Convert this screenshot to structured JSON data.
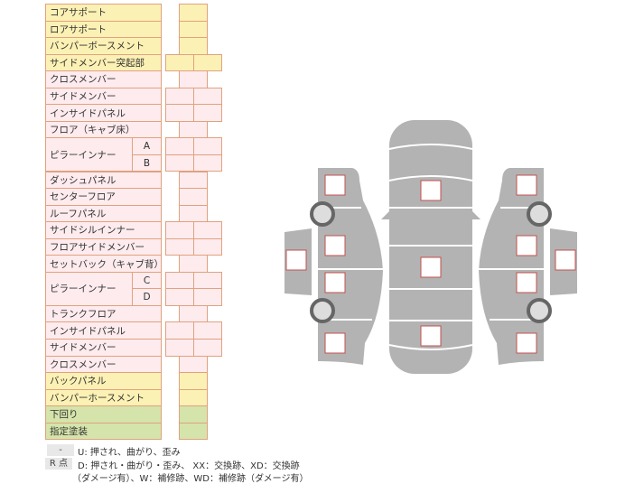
{
  "rows": [
    {
      "label": "コアサポート",
      "color": "yellow",
      "cols": 1
    },
    {
      "label": "ロアサポート",
      "color": "yellow",
      "cols": 1
    },
    {
      "label": "バンパーボースメント",
      "color": "yellow",
      "cols": 1
    },
    {
      "label": "サイドメンバー突起部",
      "color": "yellow",
      "cols": 2
    },
    {
      "label": "クロスメンバー",
      "color": "pink",
      "cols": 1
    },
    {
      "label": "サイドメンバー",
      "color": "pink",
      "cols": 2
    },
    {
      "label": "インサイドパネル",
      "color": "pink",
      "cols": 2
    },
    {
      "label": "フロア（キャブ床）",
      "color": "pink",
      "cols": 1
    },
    {
      "label": "ピラーインナー",
      "color": "pink",
      "cols": 2,
      "sub": "A",
      "span": 2
    },
    {
      "label": "",
      "color": "pink",
      "cols": 2,
      "sub": "B",
      "cont": true
    },
    {
      "label": "ダッシュパネル",
      "color": "pink",
      "cols": 1
    },
    {
      "label": "センターフロア",
      "color": "pink",
      "cols": 1
    },
    {
      "label": "ルーフパネル",
      "color": "pink",
      "cols": 1
    },
    {
      "label": "サイドシルインナー",
      "color": "pink",
      "cols": 2
    },
    {
      "label": "フロアサイドメンバー",
      "color": "pink",
      "cols": 2
    },
    {
      "label": "セットバック（キャブ背）",
      "color": "pink",
      "cols": 1
    },
    {
      "label": "ピラーインナー",
      "color": "pink",
      "cols": 2,
      "sub": "C",
      "span": 2
    },
    {
      "label": "",
      "color": "pink",
      "cols": 2,
      "sub": "D",
      "cont": true
    },
    {
      "label": "トランクフロア",
      "color": "pink",
      "cols": 1
    },
    {
      "label": "インサイドパネル",
      "color": "pink",
      "cols": 2
    },
    {
      "label": "サイドメンバー",
      "color": "pink",
      "cols": 2
    },
    {
      "label": "クロスメンバー",
      "color": "pink",
      "cols": 1
    },
    {
      "label": "バックパネル",
      "color": "yellow",
      "cols": 1
    },
    {
      "label": "バンパーホースメント",
      "color": "yellow",
      "cols": 1
    },
    {
      "label": "下回り",
      "color": "green",
      "cols": 1
    },
    {
      "label": "指定塗装",
      "color": "green",
      "cols": 1
    }
  ],
  "legend": {
    "dash_badge": "-",
    "dash_text": "U: 押され、曲がり、歪み",
    "r_badge": "R 点",
    "r_text_1": "D: 押され・曲がり・歪み、 XX：交換跡、XD：交換跡",
    "r_text_2": "（ダメージ有）、W：補修跡、WD：補修跡（ダメージ有）"
  },
  "colors": {
    "yellow": "#fcf1b4",
    "pink": "#fdebee",
    "green": "#d5e4aa",
    "border": "#e0a27f",
    "car_body": "#b3b3b3",
    "check_box_border": "#c0504d"
  }
}
